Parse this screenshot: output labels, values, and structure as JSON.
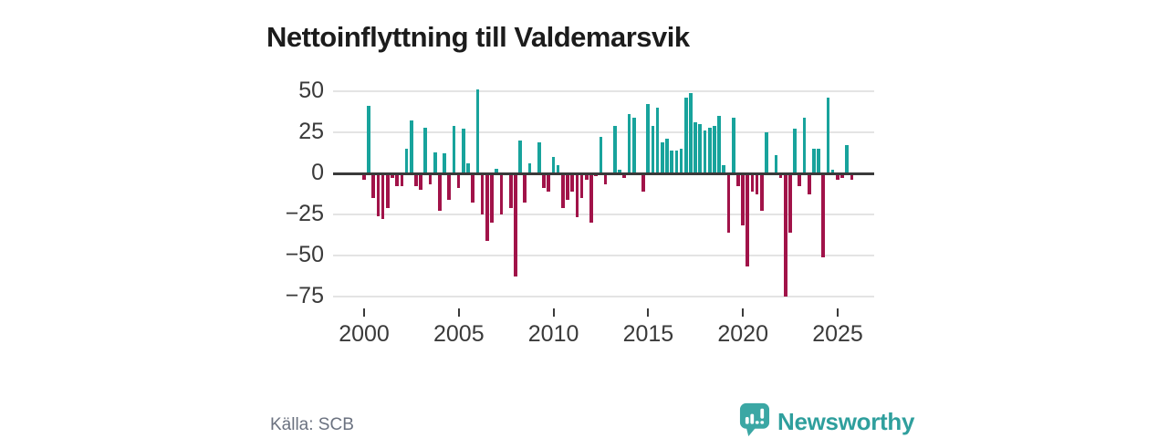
{
  "title": "Nettoinflyttning till Valdemarsvik",
  "source_caption": "Källa: SCB",
  "logo": {
    "text": "Newsworthy",
    "icon": "bar-chart-speech-bubble-icon"
  },
  "colors": {
    "positive_bar": "#18a39c",
    "negative_bar": "#a11349",
    "zero_axis": "#3a3a3a",
    "gridline": "#e4e4e4",
    "axis_label": "#3a3a3a",
    "title_text": "#1c1c1c",
    "source_text": "#6b7280",
    "logo_teal": "#2f9f9d"
  },
  "chart_data": {
    "type": "bar",
    "title": "Nettoinflyttning till Valdemarsvik",
    "interval": "quarter",
    "x_start": "2000-Q1",
    "x_tick_labels": [
      "2000",
      "2005",
      "2010",
      "2015",
      "2020",
      "2025"
    ],
    "y_ticks": [
      50,
      25,
      0,
      -25,
      -50,
      -75
    ],
    "y_tick_labels": [
      "50",
      "25",
      "0",
      "−25",
      "−50",
      "−75"
    ],
    "ylim": [
      -80,
      55
    ],
    "grid": "horizontal",
    "legend": "none",
    "values": [
      -3,
      41,
      -14,
      -25,
      -27,
      -20,
      -2,
      -7,
      -7,
      15,
      32,
      -7,
      -9,
      28,
      -6,
      13,
      -22,
      12,
      -15,
      29,
      -8,
      27,
      6,
      -17,
      51,
      -24,
      -40,
      -29,
      3,
      -24,
      0,
      -20,
      -62,
      20,
      -17,
      6,
      0,
      19,
      -8,
      -10,
      10,
      5,
      -20,
      -15,
      -10,
      -26,
      -14,
      -3,
      -29,
      -1,
      22,
      -6,
      0,
      29,
      2,
      -2,
      36,
      34,
      0,
      -10,
      42,
      29,
      40,
      19,
      21,
      14,
      14,
      15,
      46,
      49,
      31,
      30,
      26,
      28,
      29,
      35,
      5,
      -35,
      34,
      -7,
      -31,
      -56,
      -10,
      -12,
      -22,
      25,
      0,
      11,
      -2,
      -74,
      -35,
      27,
      -7,
      34,
      -12,
      15,
      15,
      -50,
      46,
      2,
      -3,
      -2,
      17,
      -3
    ]
  }
}
